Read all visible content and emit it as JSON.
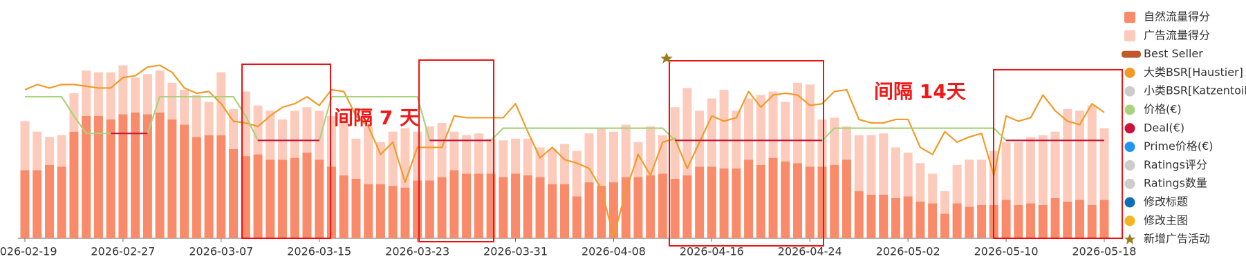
{
  "chart_data": {
    "type": "bar-line",
    "categories": [
      "2026-02-19",
      null,
      null,
      null,
      null,
      null,
      null,
      null,
      "2026-02-27",
      null,
      null,
      null,
      null,
      null,
      null,
      null,
      "2026-03-07",
      null,
      null,
      null,
      null,
      null,
      null,
      null,
      "2026-03-15",
      null,
      null,
      null,
      null,
      null,
      null,
      null,
      "2026-03-23",
      null,
      null,
      null,
      null,
      null,
      null,
      null,
      "2026-03-31",
      null,
      null,
      null,
      null,
      null,
      null,
      null,
      "2026-04-08",
      null,
      null,
      null,
      null,
      null,
      null,
      null,
      "2026-04-16",
      null,
      null,
      null,
      null,
      null,
      null,
      null,
      "2026-04-24",
      null,
      null,
      null,
      null,
      null,
      null,
      null,
      "2026-05-02",
      null,
      null,
      null,
      null,
      null,
      null,
      null,
      "2026-05-10",
      null,
      null,
      null,
      null,
      null,
      null,
      null,
      "2026-05-18"
    ],
    "ylim": [
      0,
      100
    ],
    "series": [
      {
        "name": "自然流量得分",
        "kind": "bar",
        "marker": "rect",
        "color": "#f98b6a",
        "values": [
          39,
          39,
          42,
          41,
          61,
          70,
          70,
          68,
          71,
          72,
          71,
          72,
          68,
          65,
          58,
          59,
          59,
          51,
          47,
          48,
          45,
          45,
          46,
          49,
          45,
          41,
          36,
          34,
          31,
          31,
          30,
          29,
          33,
          33,
          35,
          39,
          37,
          37,
          37,
          35,
          37,
          36,
          35,
          31,
          31,
          24,
          32,
          30,
          32,
          35,
          35,
          36,
          37,
          34,
          36,
          41,
          41,
          40,
          40,
          45,
          42,
          46,
          44,
          43,
          41,
          41,
          42,
          45,
          27,
          25,
          25,
          23,
          24,
          21,
          20,
          14,
          20,
          18,
          19,
          19,
          22,
          19,
          20,
          19,
          23,
          21,
          22,
          19,
          22
        ]
      },
      {
        "name": "广告流量得分",
        "kind": "bar",
        "marker": "rect",
        "color": "#fdcbbb",
        "values": [
          28,
          22,
          16,
          18,
          22,
          26,
          25,
          27,
          28,
          20,
          23,
          24,
          21,
          20,
          24,
          19,
          36,
          23,
          37,
          28,
          28,
          23,
          27,
          26,
          28,
          29,
          32,
          23,
          33,
          24,
          31,
          34,
          28,
          31,
          31,
          22,
          22,
          23,
          20,
          21,
          20,
          21,
          17,
          20,
          23,
          26,
          28,
          33,
          29,
          30,
          20,
          28,
          22,
          41,
          50,
          32,
          39,
          45,
          33,
          35,
          40,
          38,
          34,
          46,
          47,
          27,
          27,
          19,
          32,
          34,
          35,
          29,
          25,
          22,
          17,
          13,
          22,
          27,
          26,
          31,
          33,
          36,
          38,
          40,
          38,
          53,
          51,
          57,
          41
        ]
      },
      {
        "name": "Best Seller",
        "marker": "roundbar",
        "color": "#c0592a"
      },
      {
        "name": "大类BSR[Haustier]",
        "kind": "line",
        "marker": "circle",
        "color": "#f29a26",
        "values": [
          85,
          88,
          86,
          88,
          88,
          87,
          86,
          86,
          92,
          93,
          98,
          99,
          95,
          86,
          83,
          84,
          77,
          67,
          66,
          64,
          70,
          75,
          77,
          81,
          76,
          85,
          84,
          70,
          64,
          48,
          55,
          32,
          52,
          52,
          52,
          70,
          69,
          69,
          69,
          69,
          77,
          61,
          46,
          52,
          45,
          43,
          40,
          28,
          1,
          27,
          48,
          36,
          55,
          57,
          40,
          55,
          70,
          67,
          69,
          84,
          75,
          82,
          83,
          82,
          76,
          77,
          84,
          85,
          68,
          66,
          66,
          68,
          68,
          52,
          48,
          61,
          55,
          58,
          60,
          36,
          70,
          67,
          69,
          82,
          73,
          67,
          65,
          77,
          72
        ]
      },
      {
        "name": "小类BSR[Katzentoile",
        "marker": "circle",
        "color": "#cccccc",
        "enabled": false
      },
      {
        "name": "价格(€)",
        "kind": "line",
        "marker": "circle",
        "color": "#a8d37c",
        "values": [
          81,
          81,
          81,
          81,
          70,
          60,
          60,
          60,
          60,
          60,
          60,
          81,
          81,
          81,
          81,
          81,
          81,
          81,
          70,
          56,
          56,
          56,
          56,
          56,
          56,
          81,
          81,
          81,
          81,
          81,
          81,
          81,
          81,
          56,
          56,
          56,
          56,
          56,
          56,
          63,
          63,
          63,
          63,
          63,
          63,
          63,
          63,
          63,
          63,
          63,
          63,
          63,
          63,
          56,
          56,
          56,
          56,
          56,
          56,
          56,
          56,
          56,
          56,
          56,
          56,
          56,
          63,
          63,
          63,
          63,
          63,
          63,
          63,
          63,
          63,
          63,
          63,
          63,
          63,
          63,
          56,
          56,
          56,
          56,
          56,
          56,
          56,
          56,
          56
        ]
      },
      {
        "name": "Deal(€)",
        "kind": "line",
        "marker": "circle",
        "color": "#c8143c",
        "values": [
          null,
          null,
          null,
          null,
          null,
          null,
          null,
          60,
          60,
          60,
          60,
          null,
          null,
          null,
          null,
          null,
          null,
          null,
          null,
          56,
          56,
          56,
          56,
          56,
          56,
          null,
          null,
          null,
          null,
          null,
          null,
          null,
          null,
          56,
          56,
          56,
          56,
          56,
          56,
          null,
          null,
          null,
          null,
          null,
          null,
          null,
          null,
          null,
          null,
          null,
          null,
          null,
          null,
          56,
          56,
          56,
          56,
          56,
          56,
          56,
          56,
          56,
          56,
          56,
          56,
          56,
          null,
          null,
          null,
          null,
          null,
          null,
          null,
          null,
          null,
          null,
          null,
          null,
          null,
          null,
          56,
          56,
          56,
          56,
          56,
          56,
          56,
          56,
          56
        ]
      },
      {
        "name": "Prime价格(€)",
        "marker": "circle",
        "color": "#2196f3"
      },
      {
        "name": "Ratings评分",
        "marker": "circle",
        "color": "#cccccc",
        "enabled": false
      },
      {
        "name": "Ratings数量",
        "marker": "circle",
        "color": "#cccccc",
        "enabled": false
      },
      {
        "name": "修改标题",
        "marker": "circle",
        "color": "#0d6eb8"
      },
      {
        "name": "修改主图",
        "marker": "circle",
        "color": "#f6b51e"
      },
      {
        "name": "新增广告活动",
        "marker": "star",
        "color": "#9a7c1a"
      }
    ],
    "annotations": [
      "间隔 7 天",
      "间隔 14天"
    ]
  }
}
